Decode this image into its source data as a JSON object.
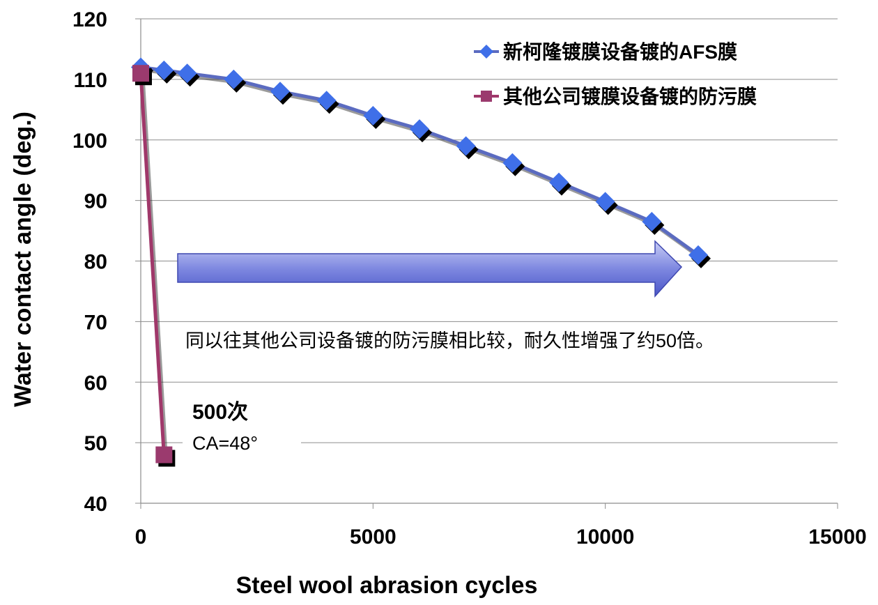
{
  "chart_data": {
    "type": "line",
    "xlabel": "Steel wool abrasion cycles",
    "ylabel": "Water contact angle (deg.)",
    "xlim": [
      0,
      15000
    ],
    "ylim": [
      40,
      120
    ],
    "x_ticks": [
      "0",
      "5000",
      "10000",
      "15000"
    ],
    "y_ticks": [
      "40",
      "50",
      "60",
      "70",
      "80",
      "90",
      "100",
      "110",
      "120"
    ],
    "grid": "horizontal",
    "legend_position": "top-right",
    "series": [
      {
        "name": "新柯隆镀膜设备镀的AFS膜",
        "color": "#5b6bc0",
        "marker_color": "#3f6fe8",
        "marker": "diamond",
        "x": [
          0,
          500,
          1000,
          2000,
          3000,
          4000,
          5000,
          6000,
          7000,
          8000,
          9000,
          10000,
          11000,
          12000
        ],
        "y": [
          112,
          111.5,
          111,
          110,
          108,
          106.5,
          104,
          101.8,
          99,
          96.2,
          93,
          89.8,
          86.5,
          81
        ]
      },
      {
        "name": "其他公司镀膜设备镀的防污膜",
        "color": "#a0386a",
        "marker_color": "#9b3a6e",
        "marker": "square",
        "x": [
          0,
          500
        ],
        "y": [
          111,
          48
        ]
      }
    ],
    "annotations": {
      "comparison_note": "同以往其他公司设备镀的防污膜相比较，耐久性增强了约50倍。",
      "cycles_note": "500次",
      "ca_note": "CA=48°"
    }
  }
}
